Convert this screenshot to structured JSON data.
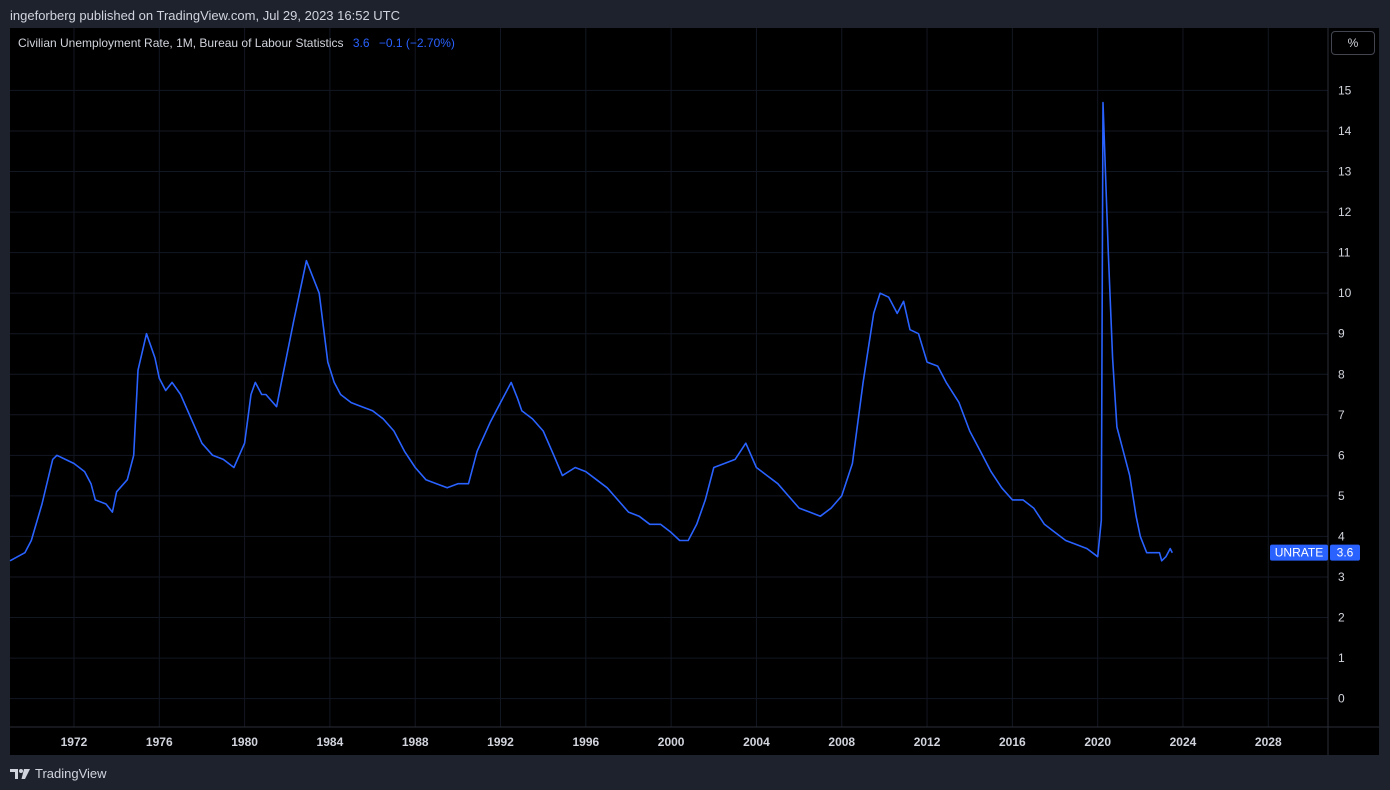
{
  "header": {
    "published": "ingeforberg published on TradingView.com, Jul 29, 2023 16:52 UTC"
  },
  "legend": {
    "title": "Civilian Unemployment Rate, 1M, Bureau of Labour Statistics",
    "last_value": "3.6",
    "change": "−0.1 (−2.70%)"
  },
  "toolbar": {
    "unit_button": "%"
  },
  "price_tag": {
    "symbol": "UNRATE",
    "value": "3.6"
  },
  "footer": {
    "brand": "TradingView"
  },
  "colors": {
    "background": "#000000",
    "frame": "#1e222d",
    "grid": "#131722",
    "line": "#2962ff",
    "text": "#d1d4dc"
  },
  "icons": {
    "brand_logo": "tradingview-logo-icon"
  },
  "chart_data": {
    "type": "line",
    "series": [
      {
        "name": "UNRATE",
        "points": [
          [
            1969.0,
            3.4
          ],
          [
            1969.7,
            3.6
          ],
          [
            1970.0,
            3.9
          ],
          [
            1970.5,
            4.8
          ],
          [
            1971.0,
            5.9
          ],
          [
            1971.2,
            6.0
          ],
          [
            1971.6,
            5.9
          ],
          [
            1972.0,
            5.8
          ],
          [
            1972.5,
            5.6
          ],
          [
            1972.8,
            5.3
          ],
          [
            1973.0,
            4.9
          ],
          [
            1973.5,
            4.8
          ],
          [
            1973.8,
            4.6
          ],
          [
            1974.0,
            5.1
          ],
          [
            1974.5,
            5.4
          ],
          [
            1974.8,
            6.0
          ],
          [
            1975.0,
            8.1
          ],
          [
            1975.4,
            9.0
          ],
          [
            1975.8,
            8.4
          ],
          [
            1976.0,
            7.9
          ],
          [
            1976.3,
            7.6
          ],
          [
            1976.6,
            7.8
          ],
          [
            1977.0,
            7.5
          ],
          [
            1977.5,
            6.9
          ],
          [
            1978.0,
            6.3
          ],
          [
            1978.5,
            6.0
          ],
          [
            1979.0,
            5.9
          ],
          [
            1979.5,
            5.7
          ],
          [
            1980.0,
            6.3
          ],
          [
            1980.3,
            7.5
          ],
          [
            1980.5,
            7.8
          ],
          [
            1980.8,
            7.5
          ],
          [
            1981.0,
            7.5
          ],
          [
            1981.5,
            7.2
          ],
          [
            1981.8,
            8.0
          ],
          [
            1982.3,
            9.3
          ],
          [
            1982.9,
            10.8
          ],
          [
            1983.5,
            10.0
          ],
          [
            1983.9,
            8.3
          ],
          [
            1984.2,
            7.8
          ],
          [
            1984.5,
            7.5
          ],
          [
            1985.0,
            7.3
          ],
          [
            1985.5,
            7.2
          ],
          [
            1986.0,
            7.1
          ],
          [
            1986.5,
            6.9
          ],
          [
            1987.0,
            6.6
          ],
          [
            1987.5,
            6.1
          ],
          [
            1988.0,
            5.7
          ],
          [
            1988.5,
            5.4
          ],
          [
            1989.0,
            5.3
          ],
          [
            1989.5,
            5.2
          ],
          [
            1990.0,
            5.3
          ],
          [
            1990.5,
            5.3
          ],
          [
            1990.9,
            6.1
          ],
          [
            1991.5,
            6.8
          ],
          [
            1992.0,
            7.3
          ],
          [
            1992.5,
            7.8
          ],
          [
            1992.8,
            7.4
          ],
          [
            1993.0,
            7.1
          ],
          [
            1993.5,
            6.9
          ],
          [
            1994.0,
            6.6
          ],
          [
            1994.5,
            6.0
          ],
          [
            1994.9,
            5.5
          ],
          [
            1995.5,
            5.7
          ],
          [
            1996.0,
            5.6
          ],
          [
            1996.5,
            5.4
          ],
          [
            1997.0,
            5.2
          ],
          [
            1997.5,
            4.9
          ],
          [
            1998.0,
            4.6
          ],
          [
            1998.5,
            4.5
          ],
          [
            1999.0,
            4.3
          ],
          [
            1999.5,
            4.3
          ],
          [
            2000.0,
            4.1
          ],
          [
            2000.4,
            3.9
          ],
          [
            2000.8,
            3.9
          ],
          [
            2001.2,
            4.3
          ],
          [
            2001.6,
            4.9
          ],
          [
            2002.0,
            5.7
          ],
          [
            2002.5,
            5.8
          ],
          [
            2003.0,
            5.9
          ],
          [
            2003.5,
            6.3
          ],
          [
            2004.0,
            5.7
          ],
          [
            2004.5,
            5.5
          ],
          [
            2005.0,
            5.3
          ],
          [
            2005.5,
            5.0
          ],
          [
            2006.0,
            4.7
          ],
          [
            2006.5,
            4.6
          ],
          [
            2007.0,
            4.5
          ],
          [
            2007.5,
            4.7
          ],
          [
            2008.0,
            5.0
          ],
          [
            2008.5,
            5.8
          ],
          [
            2009.0,
            7.8
          ],
          [
            2009.5,
            9.5
          ],
          [
            2009.8,
            10.0
          ],
          [
            2010.2,
            9.9
          ],
          [
            2010.6,
            9.5
          ],
          [
            2010.9,
            9.8
          ],
          [
            2011.2,
            9.1
          ],
          [
            2011.6,
            9.0
          ],
          [
            2012.0,
            8.3
          ],
          [
            2012.5,
            8.2
          ],
          [
            2012.9,
            7.8
          ],
          [
            2013.5,
            7.3
          ],
          [
            2014.0,
            6.6
          ],
          [
            2014.5,
            6.1
          ],
          [
            2015.0,
            5.6
          ],
          [
            2015.5,
            5.2
          ],
          [
            2016.0,
            4.9
          ],
          [
            2016.5,
            4.9
          ],
          [
            2017.0,
            4.7
          ],
          [
            2017.5,
            4.3
          ],
          [
            2018.0,
            4.1
          ],
          [
            2018.5,
            3.9
          ],
          [
            2019.0,
            3.8
          ],
          [
            2019.5,
            3.7
          ],
          [
            2020.0,
            3.5
          ],
          [
            2020.17,
            4.4
          ],
          [
            2020.25,
            14.7
          ],
          [
            2020.5,
            11.0
          ],
          [
            2020.7,
            8.4
          ],
          [
            2020.9,
            6.7
          ],
          [
            2021.2,
            6.1
          ],
          [
            2021.5,
            5.5
          ],
          [
            2021.8,
            4.5
          ],
          [
            2022.0,
            4.0
          ],
          [
            2022.3,
            3.6
          ],
          [
            2022.6,
            3.6
          ],
          [
            2022.9,
            3.6
          ],
          [
            2023.0,
            3.4
          ],
          [
            2023.2,
            3.5
          ],
          [
            2023.4,
            3.7
          ],
          [
            2023.5,
            3.6
          ]
        ]
      }
    ],
    "x_ticks": [
      "1972",
      "1976",
      "1980",
      "1984",
      "1988",
      "1992",
      "1996",
      "2000",
      "2004",
      "2008",
      "2012",
      "2016",
      "2020",
      "2024",
      "2028"
    ],
    "x_tick_values": [
      1972,
      1976,
      1980,
      1984,
      1988,
      1992,
      1996,
      2000,
      2004,
      2008,
      2012,
      2016,
      2020,
      2024,
      2028
    ],
    "y_ticks": [
      "0",
      "1",
      "2",
      "3",
      "4",
      "5",
      "6",
      "7",
      "8",
      "9",
      "10",
      "11",
      "12",
      "13",
      "14",
      "15"
    ],
    "xlim": [
      1969.0,
      2030.8
    ],
    "ylim": [
      -0.7,
      15.8
    ],
    "grid": true
  }
}
